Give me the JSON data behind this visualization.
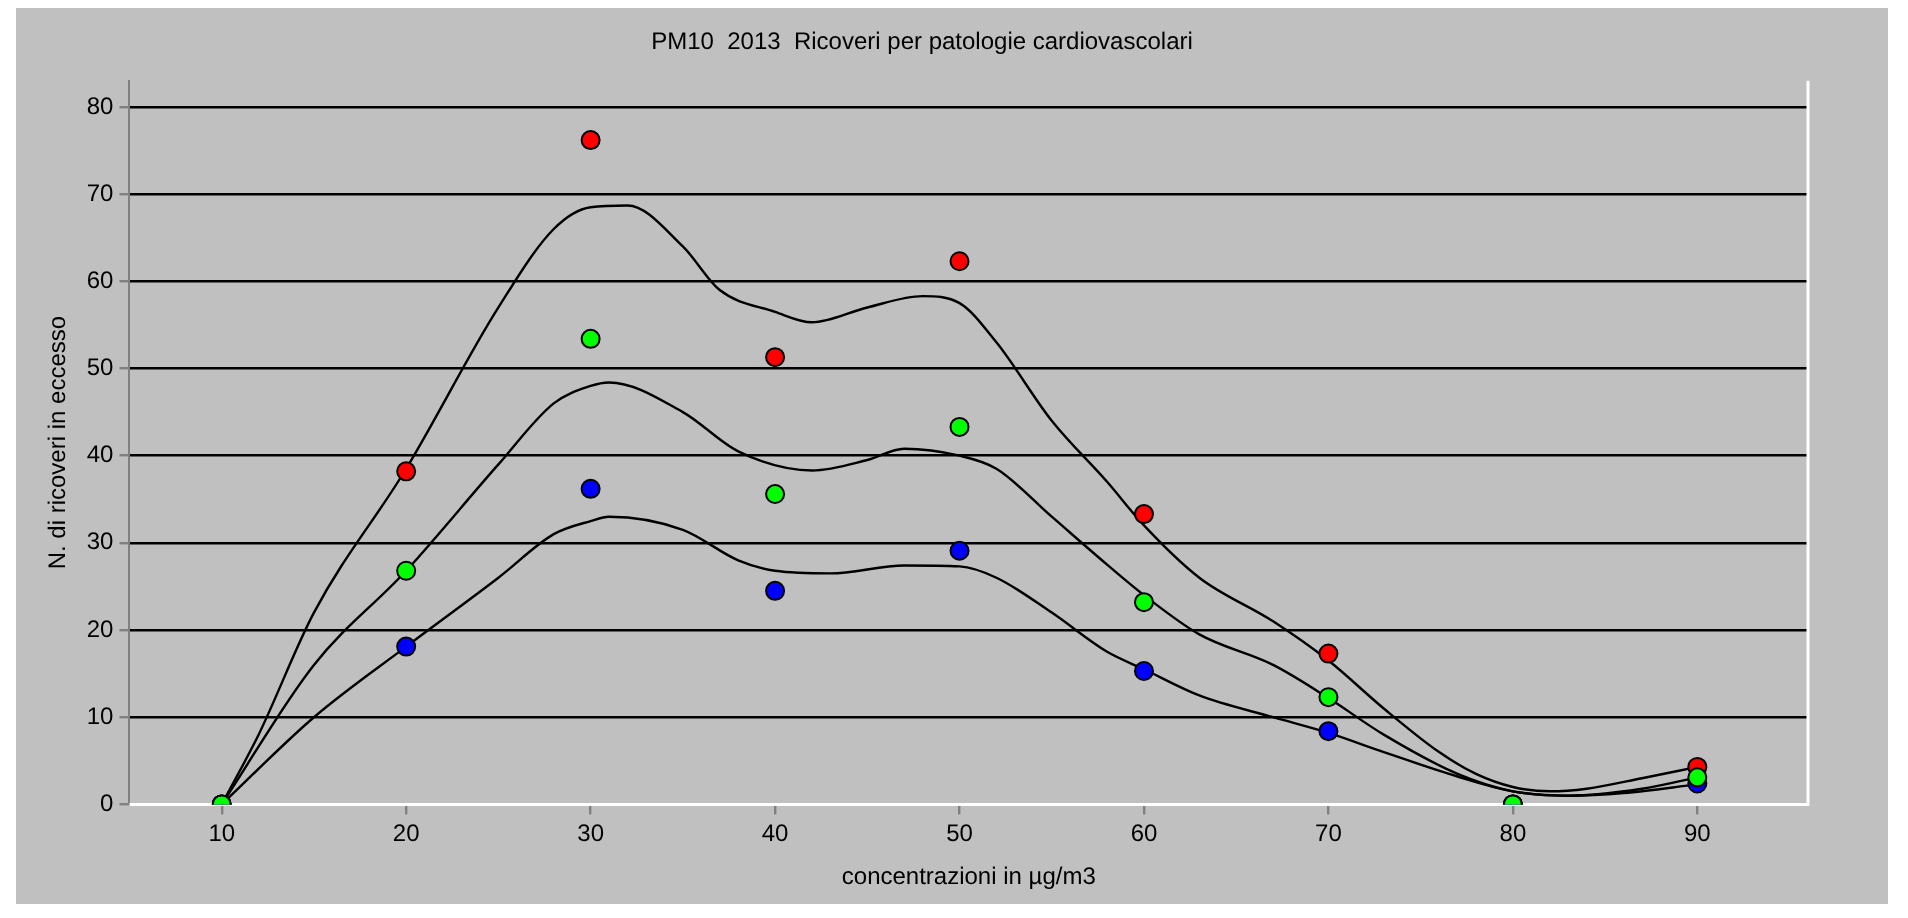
{
  "chart_data": {
    "type": "scatter",
    "title": "PM10  2013  Ricoveri per patologie cardiovascolari",
    "xlabel": "concentrazioni in µg/m3",
    "ylabel": "N. di ricoveri in eccesso",
    "x": [
      10,
      20,
      30,
      40,
      50,
      60,
      70,
      80,
      90
    ],
    "series": [
      {
        "color": "#ff0000",
        "values": [
          0,
          38.2,
          76.2,
          51.3,
          62.3,
          33.3,
          17.3,
          0,
          4.3
        ]
      },
      {
        "color": "#0000ff",
        "values": [
          0,
          18.1,
          36.2,
          24.5,
          29.1,
          15.3,
          8.4,
          0,
          2.4
        ]
      },
      {
        "color": "#00ff00",
        "values": [
          0,
          26.8,
          53.4,
          35.6,
          43.3,
          23.2,
          12.3,
          0,
          3.1
        ]
      },
      {
        "type": "line",
        "marker": "none",
        "color": "#000000",
        "x": [
          10,
          12,
          15,
          20,
          25,
          28,
          30,
          32,
          35,
          37,
          40,
          42,
          45,
          48,
          50,
          52,
          55,
          58,
          60,
          63,
          67,
          70,
          73,
          76,
          78,
          80,
          82,
          84,
          87,
          90
        ],
        "values": [
          0,
          8,
          22,
          38.5,
          57,
          66,
          68.5,
          68.7,
          64,
          59,
          56.5,
          55.3,
          57,
          58.3,
          57.5,
          53,
          44,
          37,
          32,
          26,
          21,
          16.5,
          11,
          6,
          3.5,
          2,
          1.5,
          1.8,
          3,
          4.3
        ]
      },
      {
        "type": "line",
        "marker": "none",
        "color": "#000000",
        "x": [
          10,
          15,
          20,
          25,
          28,
          30,
          31,
          35,
          38,
          42,
          45,
          47,
          50,
          52,
          55,
          58,
          60,
          63,
          67,
          70,
          73,
          77,
          80,
          83,
          87,
          90
        ],
        "values": [
          0,
          16,
          26.8,
          39,
          46,
          48,
          48.4,
          45,
          40.5,
          38.3,
          39.5,
          40.8,
          40,
          38.5,
          33,
          27.5,
          24,
          19.5,
          16,
          12.2,
          8,
          3.5,
          1.5,
          1,
          1.8,
          3.1
        ]
      },
      {
        "type": "line",
        "marker": "none",
        "color": "#000000",
        "x": [
          10,
          15,
          20,
          25,
          28,
          30,
          31,
          35,
          38,
          40,
          43,
          47,
          50,
          52,
          55,
          58,
          60,
          63,
          67,
          70,
          73,
          77,
          80,
          83,
          86,
          90
        ],
        "values": [
          0,
          10,
          18.1,
          26,
          31,
          32.5,
          33,
          31.5,
          28,
          26.8,
          26.5,
          27.4,
          27.3,
          26,
          22,
          17.5,
          15.5,
          12.5,
          10,
          8.2,
          6,
          3.2,
          1.5,
          1,
          1.3,
          2.3
        ]
      }
    ],
    "xlim": [
      5,
      96
    ],
    "xticks": [
      10,
      20,
      30,
      40,
      50,
      60,
      70,
      80,
      90
    ],
    "ylim": [
      0,
      83
    ],
    "yticks": [
      0,
      10,
      20,
      30,
      40,
      50,
      60,
      70,
      80
    ],
    "grid": "y",
    "legend": false,
    "marker": "circle"
  }
}
